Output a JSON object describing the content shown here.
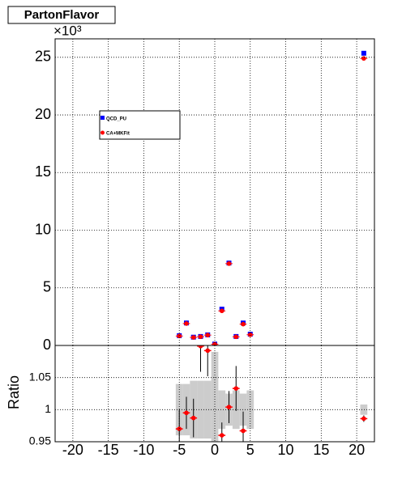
{
  "chart_data": [
    {
      "type": "scatter",
      "title": "PartonFlavor",
      "exponent_label": "×10³",
      "x": [
        -5,
        -4,
        -3,
        -2,
        -1,
        0,
        1,
        2,
        3,
        4,
        5,
        21
      ],
      "series": [
        {
          "name": "QCD_PU",
          "color": "#0000ff",
          "marker": "square",
          "values": [
            0.85,
            1.95,
            0.72,
            0.78,
            0.92,
            0.12,
            3.15,
            7.15,
            0.78,
            1.95,
            0.98,
            25.35
          ]
        },
        {
          "name": "CA+MKFit",
          "color": "#ff0000",
          "marker": "circle",
          "values": [
            0.82,
            1.9,
            0.7,
            0.76,
            0.9,
            0.11,
            3.0,
            7.1,
            0.75,
            1.85,
            0.93,
            24.9
          ]
        }
      ],
      "ylim": [
        0,
        26.6
      ],
      "yticks": [
        0,
        5,
        10,
        15,
        20,
        25
      ],
      "grid": true
    },
    {
      "type": "scatter",
      "ylabel": "Ratio",
      "x": [
        -5,
        -4,
        -3,
        -2,
        -1,
        0,
        1,
        2,
        3,
        4,
        5,
        21
      ],
      "values": [
        0.97,
        0.995,
        0.987,
        1.099,
        1.092,
        null,
        0.96,
        1.004,
        1.033,
        0.967,
        null,
        0.986
      ],
      "errors": [
        0.03,
        0.025,
        0.03,
        0.04,
        0.04,
        null,
        0.02,
        0.025,
        0.035,
        0.03,
        null,
        0.005
      ],
      "band": [
        0.04,
        0.04,
        0.045,
        0.045,
        0.045,
        0.09,
        0.03,
        0.025,
        0.03,
        0.025,
        0.03,
        0.008
      ],
      "color": "#ff0000",
      "band_color": "#cccccc",
      "xlim": [
        -22.5,
        22.5
      ],
      "xticks": [
        -20,
        -15,
        -10,
        -5,
        0,
        5,
        10,
        15,
        20
      ],
      "ylim": [
        0.95,
        1.1
      ],
      "yticks": [
        0.95,
        1,
        1.05
      ],
      "grid": true
    }
  ]
}
